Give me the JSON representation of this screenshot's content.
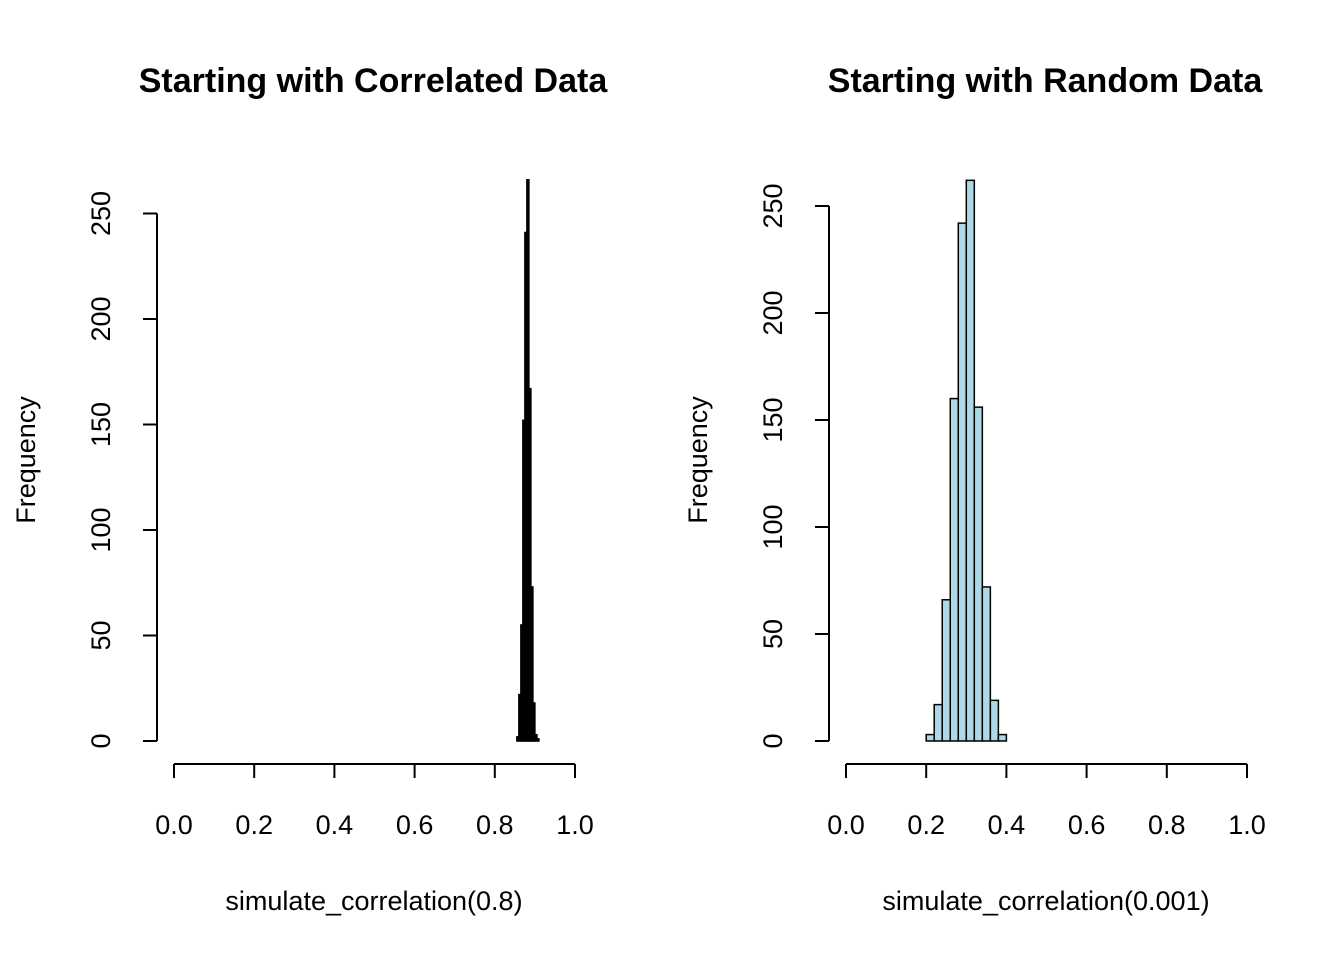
{
  "chart_data": [
    {
      "type": "bar",
      "title": "Starting with Correlated Data",
      "xlabel": "simulate_correlation(0.8)",
      "ylabel": "Frequency",
      "xlim": [
        0.0,
        1.0
      ],
      "ylim": [
        0,
        265
      ],
      "x_ticks": [
        "0.0",
        "0.2",
        "0.4",
        "0.6",
        "0.8",
        "1.0"
      ],
      "y_ticks": [
        "0",
        "50",
        "100",
        "150",
        "200",
        "250"
      ],
      "bin_edges": [
        0.855,
        0.86,
        0.865,
        0.87,
        0.875,
        0.88,
        0.885,
        0.89,
        0.895,
        0.9,
        0.905,
        0.91
      ],
      "values": [
        2,
        22,
        55,
        152,
        241,
        266,
        167,
        73,
        18,
        3,
        1
      ],
      "bar_fill": "#000000",
      "bar_stroke": "#000000",
      "grid": false,
      "legend": "none"
    },
    {
      "type": "bar",
      "title": "Starting with Random Data",
      "xlabel": "simulate_correlation(0.001)",
      "ylabel": "Frequency",
      "xlim": [
        0.0,
        1.0
      ],
      "ylim": [
        0,
        265
      ],
      "x_ticks": [
        "0.0",
        "0.2",
        "0.4",
        "0.6",
        "0.8",
        "1.0"
      ],
      "y_ticks": [
        "0",
        "50",
        "100",
        "150",
        "200",
        "250"
      ],
      "bin_edges": [
        0.2,
        0.22,
        0.24,
        0.26,
        0.28,
        0.3,
        0.32,
        0.34,
        0.36,
        0.38,
        0.4
      ],
      "values": [
        3,
        17,
        66,
        160,
        242,
        262,
        156,
        72,
        19,
        3
      ],
      "bar_fill": "#add8e6",
      "bar_stroke": "#000000",
      "grid": false,
      "legend": "none"
    }
  ]
}
